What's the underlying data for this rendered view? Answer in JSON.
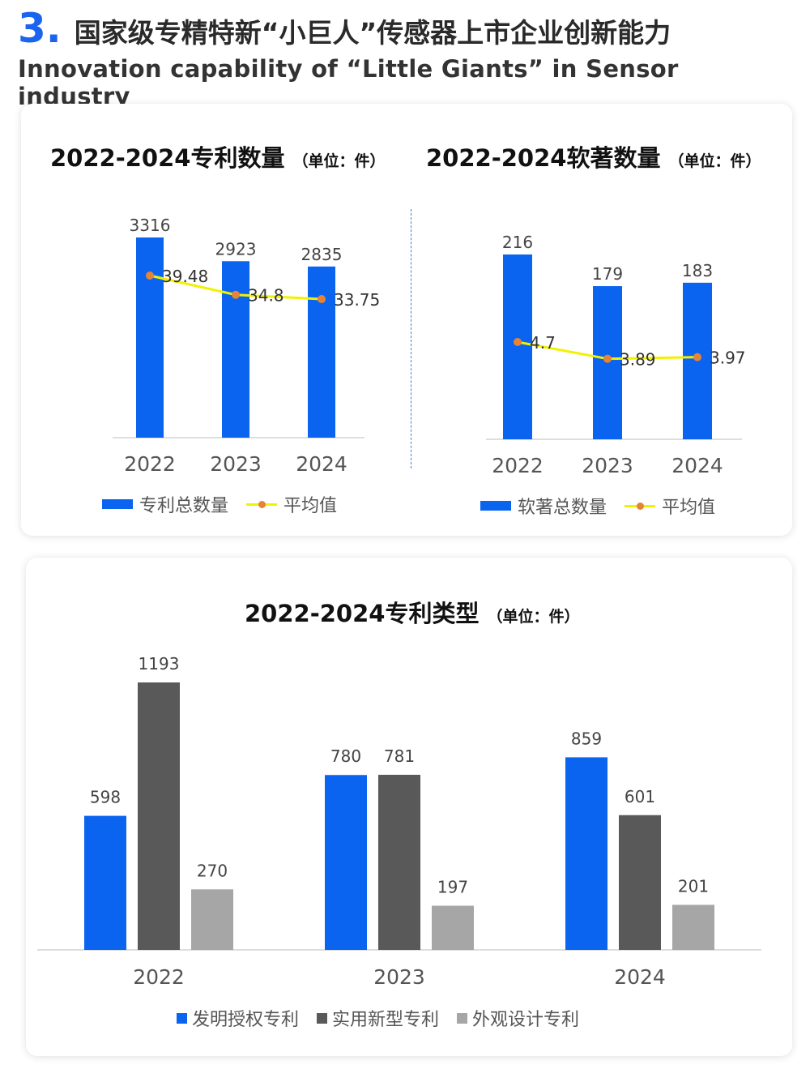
{
  "header": {
    "number": "3.",
    "title_cn": "国家级专精特新“小巨人”传感器上市企业创新能力",
    "subtitle_en": "Innovation capability of “Little Giants” in Sensor industry"
  },
  "colors": {
    "accent_blue": "#1a64f0",
    "bar_blue": "#0a64f0",
    "dark_gray": "#595959",
    "light_gray": "#a6a6a6",
    "avg_line": "#f1f100",
    "avg_marker": "#e58436"
  },
  "chart_data": [
    {
      "type": "bar",
      "title": "2022-2024专利数量",
      "unit_label": "（单位：件）",
      "categories": [
        "2022",
        "2023",
        "2024"
      ],
      "series": [
        {
          "name": "专利总数量",
          "kind": "bar",
          "values": [
            3316,
            2923,
            2835
          ]
        },
        {
          "name": "平均值",
          "kind": "line",
          "values": [
            39.48,
            34.8,
            33.75
          ]
        }
      ],
      "legend_position": "bottom"
    },
    {
      "type": "bar",
      "title": "2022-2024软著数量",
      "unit_label": "（单位：件）",
      "categories": [
        "2022",
        "2023",
        "2024"
      ],
      "series": [
        {
          "name": "软著总数量",
          "kind": "bar",
          "values": [
            216,
            179,
            183
          ]
        },
        {
          "name": "平均值",
          "kind": "line",
          "values": [
            4.7,
            3.89,
            3.97
          ]
        }
      ],
      "legend_position": "bottom"
    },
    {
      "type": "bar",
      "title": "2022-2024专利类型",
      "unit_label": "（单位：件）",
      "categories": [
        "2022",
        "2023",
        "2024"
      ],
      "series": [
        {
          "name": "发明授权专利",
          "values": [
            598,
            780,
            859
          ]
        },
        {
          "name": "实用新型专利",
          "values": [
            1193,
            781,
            601
          ]
        },
        {
          "name": "外观设计专利",
          "values": [
            270,
            197,
            201
          ]
        }
      ],
      "legend_position": "bottom"
    }
  ]
}
